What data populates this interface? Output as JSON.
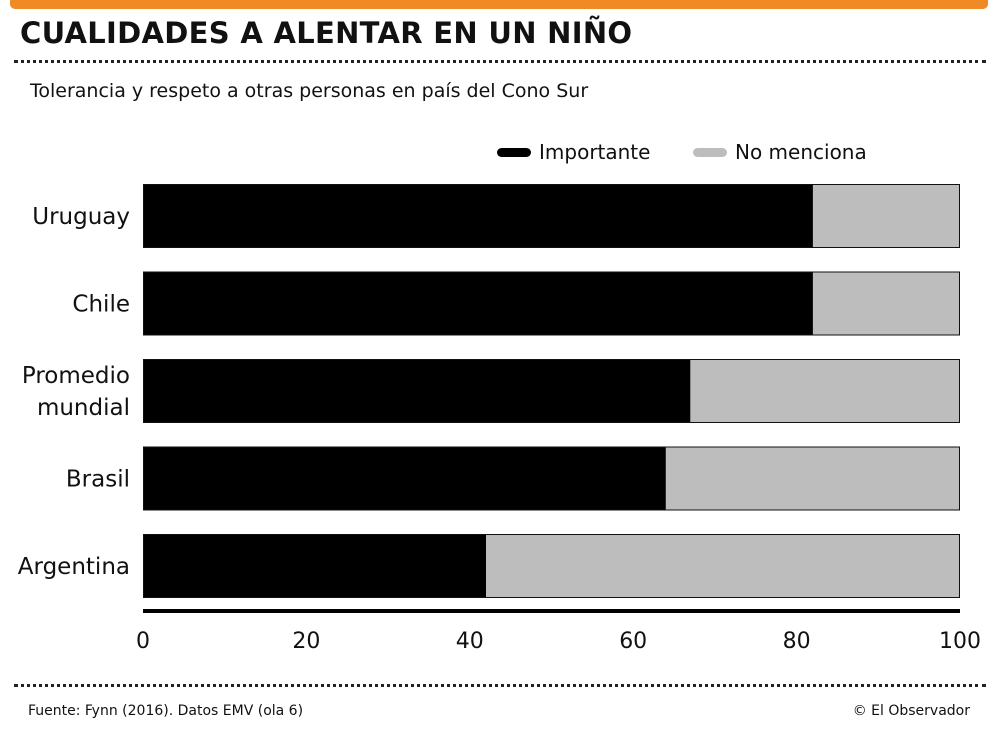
{
  "header": {
    "title": "CUALIDADES A ALENTAR EN UN NIÑO",
    "subtitle": "Tolerancia y respeto a otras personas en país del Cono Sur"
  },
  "legend": [
    {
      "label": "Importante",
      "color": "#000000"
    },
    {
      "label": "No menciona",
      "color": "#bdbdbd"
    }
  ],
  "footer": {
    "source": "Fuente: Fynn (2016). Datos EMV (ola 6)",
    "credit": "© El Observador"
  },
  "colors": {
    "accent": "#f08a24",
    "importante": "#000000",
    "no_menciona": "#bdbdbd"
  },
  "chart_data": {
    "type": "bar",
    "orientation": "horizontal",
    "stacked": true,
    "categories": [
      [
        "Uruguay"
      ],
      [
        "Chile"
      ],
      [
        "Promedio",
        "mundial"
      ],
      [
        "Brasil"
      ],
      [
        "Argentina"
      ]
    ],
    "series": [
      {
        "name": "Importante",
        "values": [
          82,
          82,
          67,
          64,
          42
        ]
      },
      {
        "name": "No menciona",
        "values": [
          18,
          18,
          33,
          36,
          58
        ]
      }
    ],
    "xlim": [
      0,
      100
    ],
    "xticks": [
      "0",
      "20",
      "40",
      "60",
      "80",
      "100"
    ],
    "grid": false,
    "legend_position": "top-right"
  }
}
